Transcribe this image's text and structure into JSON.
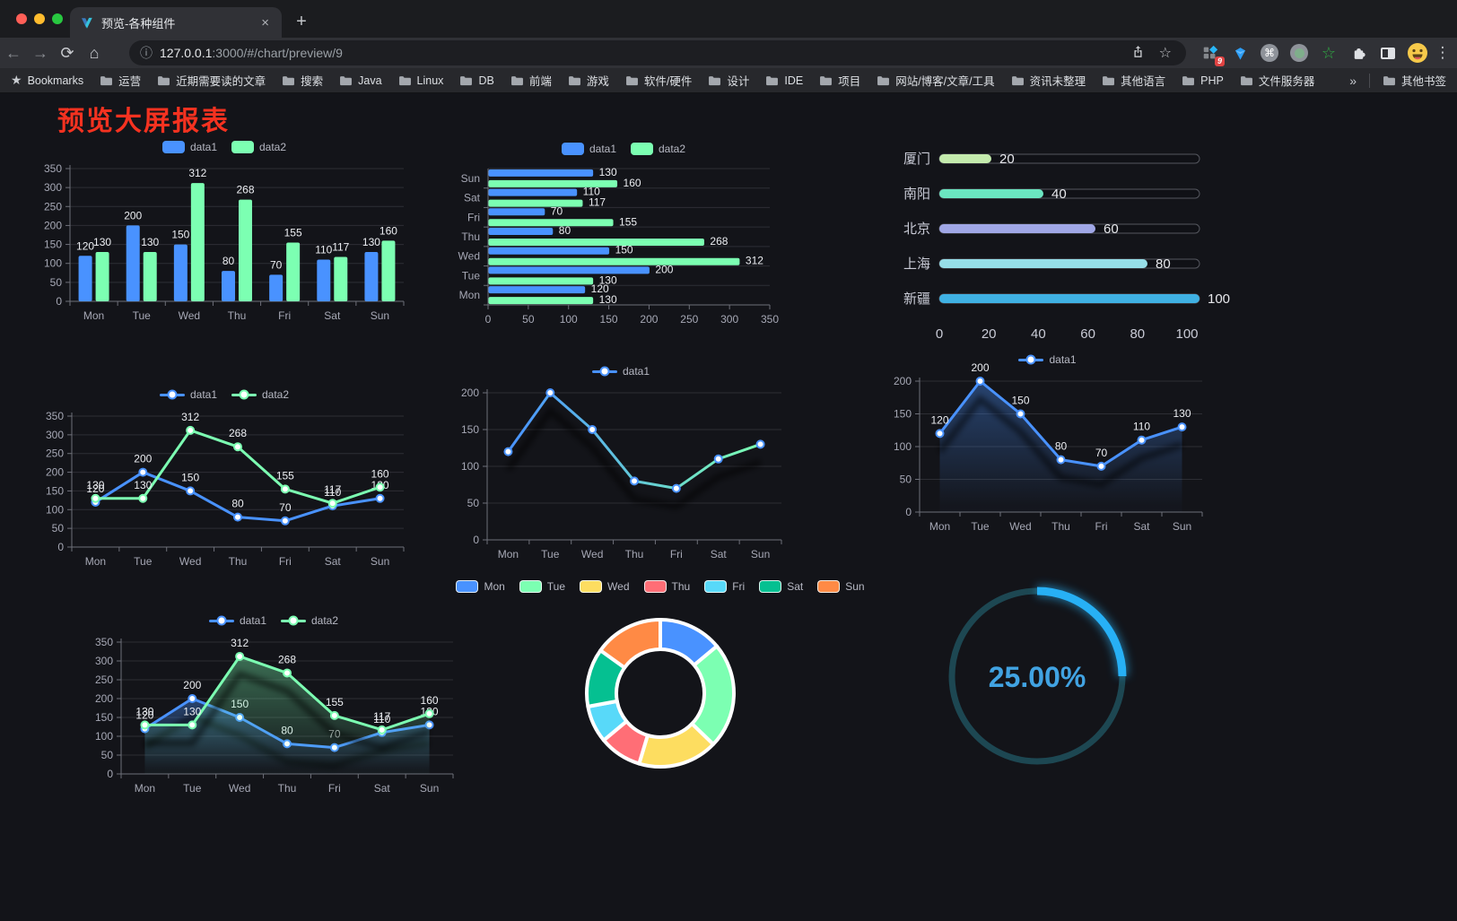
{
  "browser": {
    "traffic_lights": {
      "close": "#ff5f57",
      "minimize": "#febc2e",
      "zoom": "#28c840"
    },
    "tab": {
      "title": "预览-各种组件",
      "close_glyph": "×",
      "new_tab_glyph": "+"
    },
    "address": {
      "host": "127.0.0.1",
      "rest": ":3000/#/chart/preview/9"
    },
    "icons": {
      "back": "←",
      "forward": "→",
      "reload": "⟳",
      "home": "⌂",
      "info": "ⓘ",
      "star": "☆",
      "command": "⌘",
      "green_star": "☆",
      "kebab": "⋮",
      "overflow": "»",
      "bookmarks_star": "★"
    },
    "extensions_badge": "9",
    "bookmarks": {
      "label": "Bookmarks",
      "items": [
        "运营",
        "近期需要读的文章",
        "搜索",
        "Java",
        "Linux",
        "DB",
        "前端",
        "游戏",
        "软件/硬件",
        "设计",
        "IDE",
        "项目",
        "网站/博客/文章/工具",
        "资讯未整理",
        "其他语言",
        "PHP",
        "文件服务器"
      ],
      "overflow": "»",
      "other_bookmarks": "其他书签"
    }
  },
  "page": {
    "title": "预览大屏报表"
  },
  "theme": {
    "data1_color": "#4992ff",
    "data2_color": "#7cffb2",
    "axis_color": "#6E7079",
    "tick_text": "#a6a8b5",
    "grid_color": "rgba(185,186,201,0.16)",
    "label_color": "#eceef2",
    "legend_text": "#b7b9c4"
  },
  "chart_data": [
    {
      "id": "bar-vertical",
      "type": "bar",
      "legend_icon": "rect",
      "categories": [
        "Mon",
        "Tue",
        "Wed",
        "Thu",
        "Fri",
        "Sat",
        "Sun"
      ],
      "series": [
        {
          "name": "data1",
          "color": "#4992ff",
          "values": [
            120,
            200,
            150,
            80,
            70,
            110,
            130
          ]
        },
        {
          "name": "data2",
          "color": "#7cffb2",
          "values": [
            130,
            130,
            312,
            268,
            155,
            117,
            160
          ]
        }
      ],
      "ylim": [
        0,
        350
      ],
      "ystep": 50,
      "grid": true,
      "legend_position": "top"
    },
    {
      "id": "bar-horizontal",
      "type": "hbar",
      "legend_icon": "rect",
      "categories": [
        "Mon",
        "Tue",
        "Wed",
        "Thu",
        "Fri",
        "Sat",
        "Sun"
      ],
      "series": [
        {
          "name": "data1",
          "color": "#4992ff",
          "values": [
            120,
            200,
            150,
            80,
            70,
            110,
            130
          ]
        },
        {
          "name": "data2",
          "color": "#7cffb2",
          "values": [
            130,
            130,
            312,
            268,
            155,
            117,
            160
          ]
        }
      ],
      "xlim": [
        0,
        350
      ],
      "xstep": 50,
      "grid": true,
      "legend_position": "top"
    },
    {
      "id": "progress-bars",
      "type": "progress",
      "max": 100,
      "ticks": [
        0,
        20,
        40,
        60,
        80,
        100
      ],
      "rows": [
        {
          "label": "厦门",
          "value": 20,
          "color": "#c4ebad"
        },
        {
          "label": "南阳",
          "value": 40,
          "color": "#6be6c1"
        },
        {
          "label": "北京",
          "value": 60,
          "color": "#a0a7e6"
        },
        {
          "label": "上海",
          "value": 80,
          "color": "#96dee8"
        },
        {
          "label": "新疆",
          "value": 100,
          "color": "#3fb1e3"
        }
      ]
    },
    {
      "id": "line-dual",
      "type": "line",
      "legend_icon": "line",
      "categories": [
        "Mon",
        "Tue",
        "Wed",
        "Thu",
        "Fri",
        "Sat",
        "Sun"
      ],
      "series": [
        {
          "name": "data1",
          "color": "#4992ff",
          "values": [
            120,
            200,
            150,
            80,
            70,
            110,
            130
          ],
          "labels": true
        },
        {
          "name": "data2",
          "color": "#7cffb2",
          "values": [
            130,
            130,
            312,
            268,
            155,
            117,
            160
          ],
          "labels": true
        }
      ],
      "ylim": [
        0,
        350
      ],
      "ystep": 50,
      "grid": true,
      "legend_position": "top"
    },
    {
      "id": "line-gradient",
      "type": "line",
      "legend_icon": "line",
      "categories": [
        "Mon",
        "Tue",
        "Wed",
        "Thu",
        "Fri",
        "Sat",
        "Sun"
      ],
      "series": [
        {
          "name": "data1",
          "color": "#4992ff",
          "color2": "#7cffb2",
          "gradient": true,
          "shadow": true,
          "values": [
            120,
            200,
            150,
            80,
            70,
            110,
            130
          ],
          "labels": false
        }
      ],
      "ylim": [
        0,
        200
      ],
      "ystep": 50,
      "grid": true,
      "legend_position": "top"
    },
    {
      "id": "line-area-single",
      "type": "line",
      "legend_icon": "line",
      "categories": [
        "Mon",
        "Tue",
        "Wed",
        "Thu",
        "Fri",
        "Sat",
        "Sun"
      ],
      "series": [
        {
          "name": "data1",
          "color": "#4992ff",
          "area": true,
          "shadow": true,
          "values": [
            120,
            200,
            150,
            80,
            70,
            110,
            130
          ],
          "labels": true
        }
      ],
      "ylim": [
        0,
        200
      ],
      "ystep": 50,
      "grid": true,
      "legend_position": "top"
    },
    {
      "id": "line-area-dual",
      "type": "line",
      "legend_icon": "line",
      "categories": [
        "Mon",
        "Tue",
        "Wed",
        "Thu",
        "Fri",
        "Sat",
        "Sun"
      ],
      "series": [
        {
          "name": "data1",
          "color": "#4992ff",
          "area": true,
          "shadow": true,
          "values": [
            120,
            200,
            150,
            80,
            70,
            110,
            130
          ],
          "labels": true
        },
        {
          "name": "data2",
          "color": "#7cffb2",
          "area": true,
          "shadow": true,
          "values": [
            130,
            130,
            312,
            268,
            155,
            117,
            160
          ],
          "labels": true
        }
      ],
      "ylim": [
        0,
        350
      ],
      "ystep": 50,
      "grid": true,
      "legend_position": "top"
    },
    {
      "id": "pie-donut",
      "type": "pie",
      "legend_icon": "pie-rect",
      "legend_position": "top",
      "labels": [
        "Mon",
        "Tue",
        "Wed",
        "Thu",
        "Fri",
        "Sat",
        "Sun"
      ],
      "values": [
        120,
        200,
        150,
        80,
        70,
        110,
        130
      ],
      "colors": [
        "#4992ff",
        "#7cffb2",
        "#fddd60",
        "#ff6e76",
        "#58d9f9",
        "#05c091",
        "#ff8a45"
      ],
      "border_color": "#ffffff"
    },
    {
      "id": "gauge",
      "type": "gauge",
      "percent": 25,
      "text": "25.00%",
      "arc_color": "#27b0f5",
      "track_color": "#1d4752",
      "text_color": "#41a3e2"
    }
  ]
}
